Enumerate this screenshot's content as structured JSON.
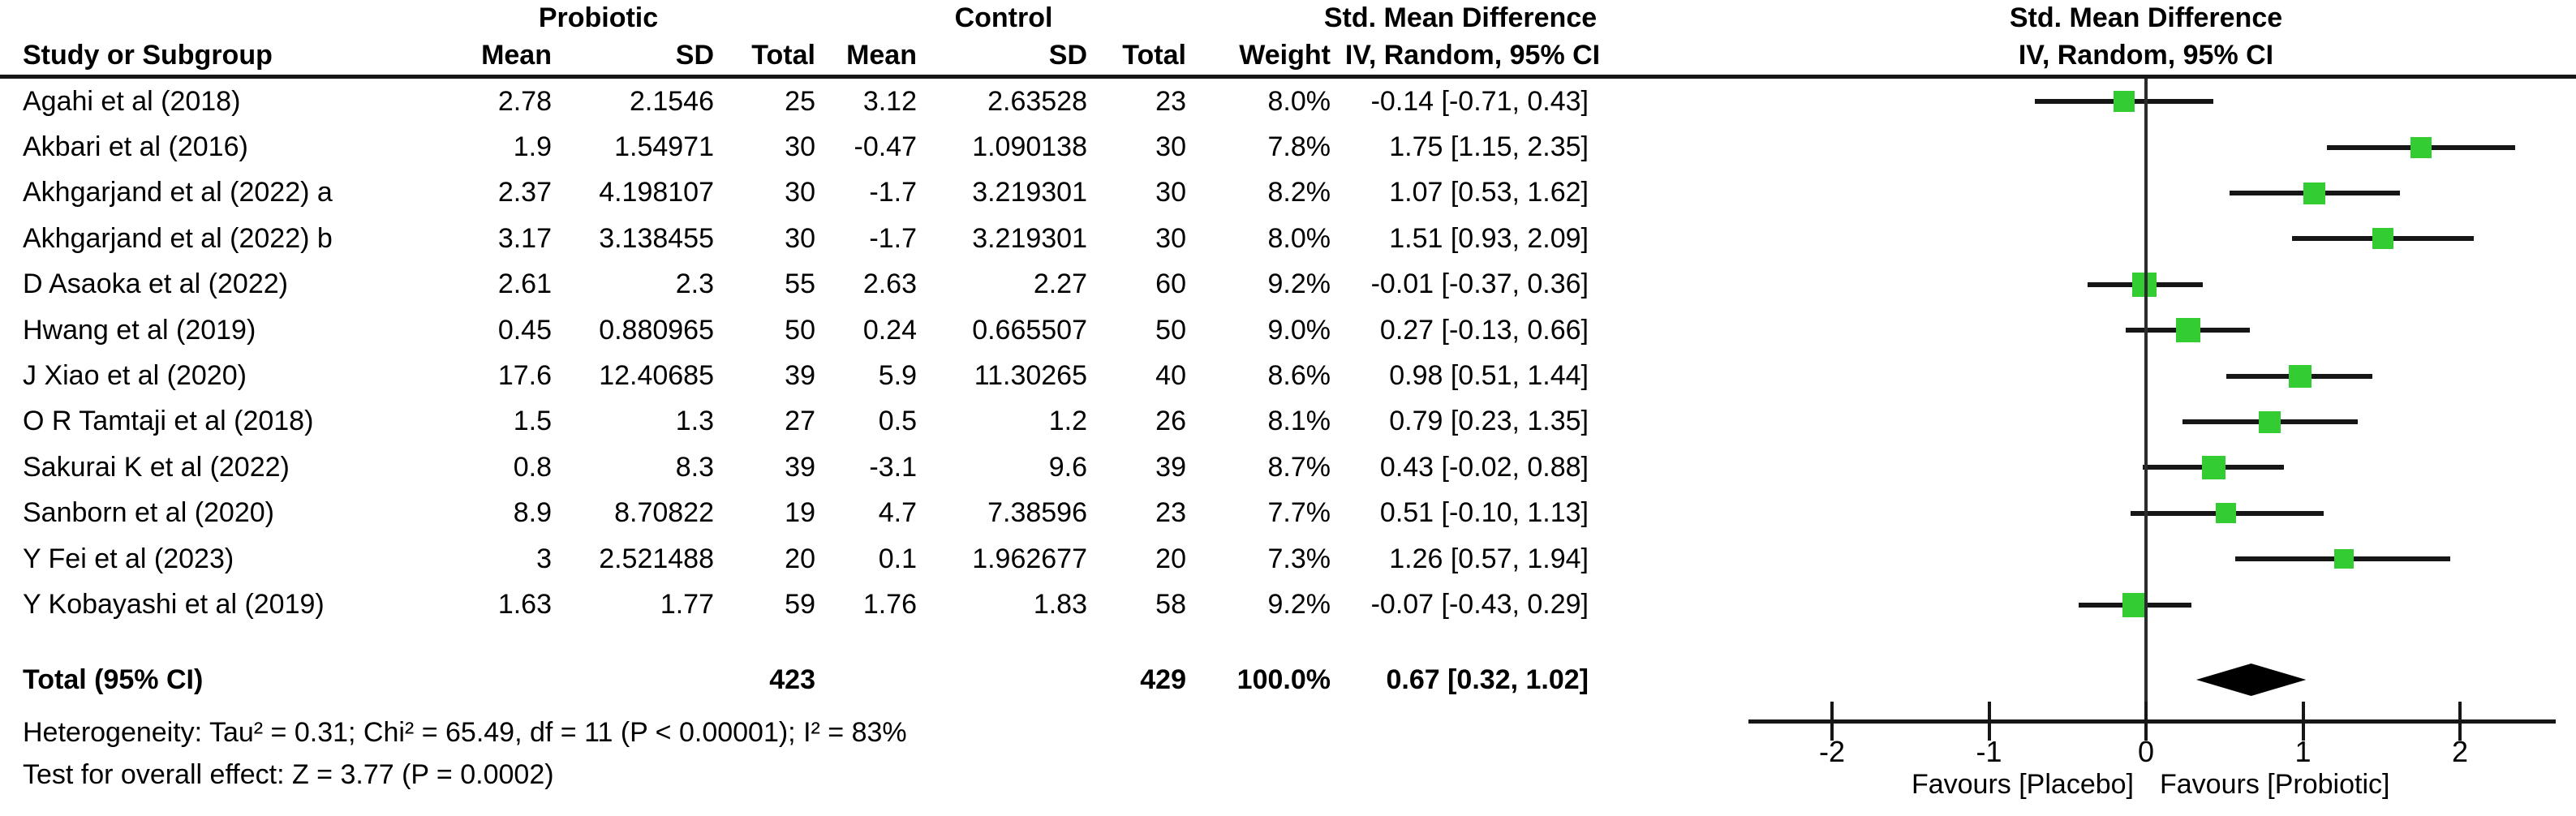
{
  "columns": {
    "group1": "Probiotic",
    "group2": "Control",
    "study": "Study or Subgroup",
    "mean1": "Mean",
    "sd1": "SD",
    "total1": "Total",
    "mean2": "Mean",
    "sd2": "SD",
    "total2": "Total",
    "weight": "Weight",
    "effect_header": "Std. Mean Difference",
    "effect_sub": "IV, Random, 95% CI",
    "plot_header": "Std. Mean Difference",
    "plot_sub": "IV, Random, 95% CI"
  },
  "chart_data": {
    "type": "forest",
    "effect_measure": "Std. Mean Difference",
    "method": "IV, Random, 95% CI",
    "studies": [
      {
        "name": "Agahi et al (2018)",
        "mean1": "2.78",
        "sd1": "2.1546",
        "n1": "25",
        "mean2": "3.12",
        "sd2": "2.63528",
        "n2": "23",
        "weight": "8.0%",
        "weight_pct": 8.0,
        "ci_text": "-0.14 [-0.71, 0.43]",
        "est": -0.14,
        "lo": -0.71,
        "hi": 0.43
      },
      {
        "name": "Akbari et al (2016)",
        "mean1": "1.9",
        "sd1": "1.54971",
        "n1": "30",
        "mean2": "-0.47",
        "sd2": "1.090138",
        "n2": "30",
        "weight": "7.8%",
        "weight_pct": 7.8,
        "ci_text": "1.75 [1.15, 2.35]",
        "est": 1.75,
        "lo": 1.15,
        "hi": 2.35
      },
      {
        "name": "Akhgarjand et al (2022) a",
        "mean1": "2.37",
        "sd1": "4.198107",
        "n1": "30",
        "mean2": "-1.7",
        "sd2": "3.219301",
        "n2": "30",
        "weight": "8.2%",
        "weight_pct": 8.2,
        "ci_text": "1.07 [0.53, 1.62]",
        "est": 1.07,
        "lo": 0.53,
        "hi": 1.62
      },
      {
        "name": "Akhgarjand et al (2022) b",
        "mean1": "3.17",
        "sd1": "3.138455",
        "n1": "30",
        "mean2": "-1.7",
        "sd2": "3.219301",
        "n2": "30",
        "weight": "8.0%",
        "weight_pct": 8.0,
        "ci_text": "1.51 [0.93, 2.09]",
        "est": 1.51,
        "lo": 0.93,
        "hi": 2.09
      },
      {
        "name": "D Asaoka et al (2022)",
        "mean1": "2.61",
        "sd1": "2.3",
        "n1": "55",
        "mean2": "2.63",
        "sd2": "2.27",
        "n2": "60",
        "weight": "9.2%",
        "weight_pct": 9.2,
        "ci_text": "-0.01 [-0.37, 0.36]",
        "est": -0.01,
        "lo": -0.37,
        "hi": 0.36
      },
      {
        "name": "Hwang et al (2019)",
        "mean1": "0.45",
        "sd1": "0.880965",
        "n1": "50",
        "mean2": "0.24",
        "sd2": "0.665507",
        "n2": "50",
        "weight": "9.0%",
        "weight_pct": 9.0,
        "ci_text": "0.27 [-0.13, 0.66]",
        "est": 0.27,
        "lo": -0.13,
        "hi": 0.66
      },
      {
        "name": "J Xiao et al (2020)",
        "mean1": "17.6",
        "sd1": "12.40685",
        "n1": "39",
        "mean2": "5.9",
        "sd2": "11.30265",
        "n2": "40",
        "weight": "8.6%",
        "weight_pct": 8.6,
        "ci_text": "0.98 [0.51, 1.44]",
        "est": 0.98,
        "lo": 0.51,
        "hi": 1.44
      },
      {
        "name": "O R Tamtaji et al (2018)",
        "mean1": "1.5",
        "sd1": "1.3",
        "n1": "27",
        "mean2": "0.5",
        "sd2": "1.2",
        "n2": "26",
        "weight": "8.1%",
        "weight_pct": 8.1,
        "ci_text": "0.79 [0.23, 1.35]",
        "est": 0.79,
        "lo": 0.23,
        "hi": 1.35
      },
      {
        "name": "Sakurai K et al (2022)",
        "mean1": "0.8",
        "sd1": "8.3",
        "n1": "39",
        "mean2": "-3.1",
        "sd2": "9.6",
        "n2": "39",
        "weight": "8.7%",
        "weight_pct": 8.7,
        "ci_text": "0.43 [-0.02, 0.88]",
        "est": 0.43,
        "lo": -0.02,
        "hi": 0.88
      },
      {
        "name": "Sanborn et al (2020)",
        "mean1": "8.9",
        "sd1": "8.70822",
        "n1": "19",
        "mean2": "4.7",
        "sd2": "7.38596",
        "n2": "23",
        "weight": "7.7%",
        "weight_pct": 7.7,
        "ci_text": "0.51 [-0.10, 1.13]",
        "est": 0.51,
        "lo": -0.1,
        "hi": 1.13
      },
      {
        "name": "Y Fei et al (2023)",
        "mean1": "3",
        "sd1": "2.521488",
        "n1": "20",
        "mean2": "0.1",
        "sd2": "1.962677",
        "n2": "20",
        "weight": "7.3%",
        "weight_pct": 7.3,
        "ci_text": "1.26 [0.57, 1.94]",
        "est": 1.26,
        "lo": 0.57,
        "hi": 1.94
      },
      {
        "name": "Y Kobayashi et al (2019)",
        "mean1": "1.63",
        "sd1": "1.77",
        "n1": "59",
        "mean2": "1.76",
        "sd2": "1.83",
        "n2": "58",
        "weight": "9.2%",
        "weight_pct": 9.2,
        "ci_text": "-0.07 [-0.43, 0.29]",
        "est": -0.07,
        "lo": -0.43,
        "hi": 0.29
      }
    ],
    "total": {
      "label": "Total (95% CI)",
      "n1": "423",
      "n2": "429",
      "weight": "100.0%",
      "ci_text": "0.67 [0.32, 1.02]",
      "est": 0.67,
      "lo": 0.32,
      "hi": 1.02
    },
    "footnotes": {
      "heterogeneity": "Heterogeneity: Tau² = 0.31; Chi² = 65.49, df = 11 (P < 0.00001); I² = 83%",
      "overall_effect": "Test for overall effect: Z = 3.77 (P = 0.0002)"
    },
    "axis": {
      "ticks": [
        "-2",
        "-1",
        "0",
        "1",
        "2"
      ],
      "tick_values": [
        -2,
        -1,
        0,
        1,
        2
      ],
      "min": -2.53,
      "max": 2.61,
      "left_label": "Favours [Placebo]",
      "right_label": "Favours [Probiotic]"
    },
    "layout_hints": {
      "grid": false,
      "zero_line": true,
      "marker": "square",
      "pooled_marker": "diamond"
    }
  },
  "colors": {
    "marker_green": "#33CC33",
    "line_black": "#161616",
    "text_black": "#000000",
    "background": "#FFFFFF"
  }
}
